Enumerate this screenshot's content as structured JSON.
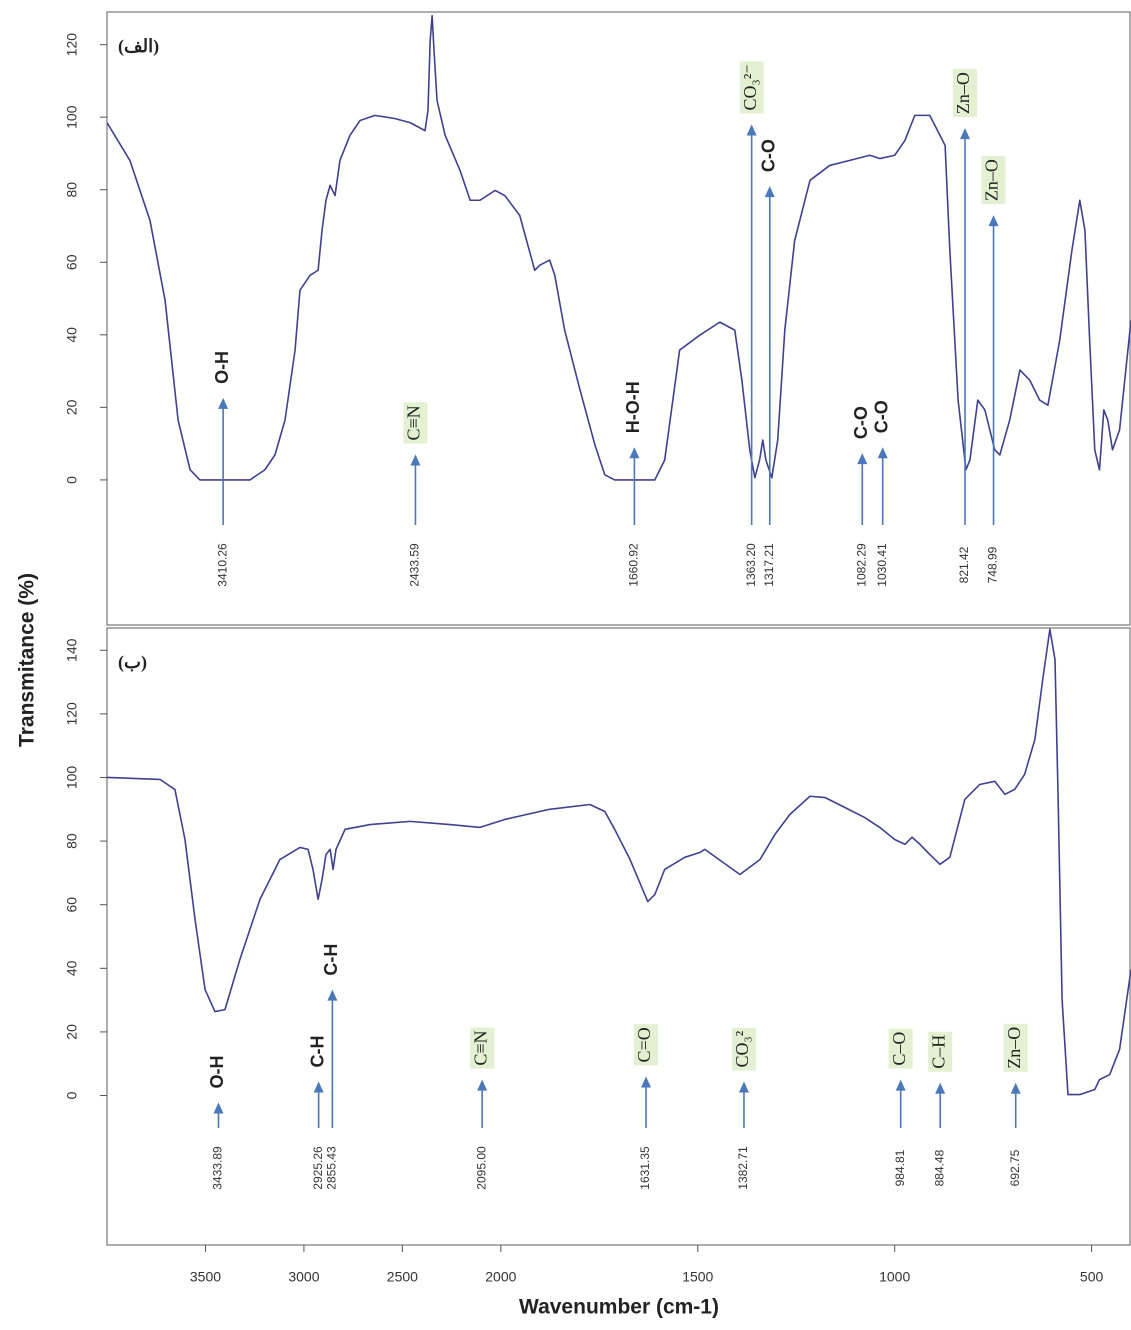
{
  "ylabel": "Transmitance (%)",
  "xlabel": "Wavenumber (cm-1)",
  "chart_data": [
    {
      "type": "line",
      "panel_label": "(الف)",
      "color": "#40408f",
      "arrow_color": "#4a78b8",
      "highlight_color": "#e3f1d2",
      "xlim": [
        4000,
        400
      ],
      "x_break": 2000,
      "x_break_zoom": 2,
      "ylim": [
        -40,
        129
      ],
      "yticks": [
        0,
        20,
        40,
        60,
        80,
        100,
        120
      ],
      "x": [
        4000,
        3883,
        3782,
        3705,
        3639,
        3578,
        3528,
        3274,
        3198,
        3147,
        3096,
        3045,
        3020,
        2969,
        2928,
        2908,
        2888,
        2867,
        2842,
        2817,
        2766,
        2715,
        2639,
        2537,
        2461,
        2385,
        2370,
        2359,
        2349,
        2339,
        2324,
        2283,
        2207,
        2156,
        2106,
        2029,
        1990,
        1952,
        1914,
        1901,
        1876,
        1863,
        1838,
        1799,
        1761,
        1736,
        1711,
        1609,
        1584,
        1546,
        1495,
        1444,
        1406,
        1388,
        1368,
        1355,
        1343,
        1335,
        1327,
        1312,
        1297,
        1279,
        1254,
        1215,
        1165,
        1114,
        1063,
        1038,
        1000,
        974,
        949,
        911,
        885,
        872,
        860,
        839,
        819,
        809,
        789,
        771,
        746,
        733,
        708,
        682,
        657,
        632,
        611,
        581,
        550,
        530,
        517,
        505,
        492,
        480,
        469,
        459,
        447,
        429,
        400
      ],
      "values": [
        98.5,
        88,
        71.6,
        49.5,
        16.5,
        2.8,
        0,
        0,
        2.8,
        6.9,
        16.5,
        35.8,
        52.3,
        56.4,
        57.8,
        68.8,
        77.1,
        81.2,
        78.4,
        88.1,
        95,
        99.1,
        100.5,
        99.6,
        98.5,
        96.3,
        101.8,
        121,
        128,
        118,
        104.6,
        95,
        85.3,
        77.1,
        77.1,
        79.8,
        78.4,
        72.9,
        57.8,
        59.2,
        60.6,
        56.4,
        41.3,
        24.8,
        9.6,
        1.4,
        0,
        0,
        5.5,
        35.8,
        39.9,
        43.5,
        41.3,
        27.5,
        8.3,
        0.6,
        5.5,
        11,
        5.5,
        0.6,
        11,
        41.3,
        66,
        82.6,
        86.7,
        88.1,
        89.5,
        88.6,
        89.5,
        93.6,
        100.5,
        100.5,
        95,
        92.2,
        63.3,
        22,
        2.8,
        5.5,
        22,
        19.3,
        8.3,
        6.9,
        16.5,
        30.3,
        27.5,
        22,
        20.6,
        38.5,
        63.3,
        77.1,
        68.8,
        38.5,
        8.3,
        2.8,
        19.3,
        16.5,
        8.3,
        13.8,
        44
      ],
      "annotations": [
        {
          "label": "O-H",
          "x": 3410.26,
          "y": 22.6,
          "highlight": false
        },
        {
          "label": "C≡N",
          "x": 2433.59,
          "y": 7,
          "highlight": true
        },
        {
          "label": "H-O-H",
          "x": 1660.92,
          "y": 9,
          "highlight": false
        },
        {
          "label": "CO₃²⁻",
          "x": {
            "value": 1363.2,
            "label": "1363.20"
          },
          "y": 98,
          "highlight": true
        },
        {
          "label": "C-O",
          "x": 1317.21,
          "y": 81,
          "highlight": false
        },
        {
          "label": "C-O",
          "x": 1082.29,
          "y": 7.4,
          "highlight": false
        },
        {
          "label": "C-O",
          "x": 1030.41,
          "y": 9,
          "highlight": false
        },
        {
          "label": "Zn–O",
          "x": 821.42,
          "y": 97,
          "highlight": true
        },
        {
          "label": "Zn–O",
          "x": 748.99,
          "y": 73,
          "highlight": true
        }
      ]
    },
    {
      "type": "line",
      "panel_label": "(ب)",
      "color": "#40408f",
      "arrow_color": "#4a78b8",
      "highlight_color": "#e3f1d2",
      "xlim": [
        4000,
        400
      ],
      "x_break": 2000,
      "x_break_zoom": 2,
      "xticks": [
        3500,
        3000,
        2500,
        2000,
        1500,
        1000,
        500
      ],
      "ylim": [
        -47,
        147
      ],
      "yticks": [
        0,
        20,
        40,
        60,
        80,
        100,
        120,
        140
      ],
      "x": [
        4000,
        3731,
        3655,
        3604,
        3553,
        3502,
        3452,
        3401,
        3325,
        3223,
        3122,
        3020,
        2979,
        2954,
        2928,
        2908,
        2888,
        2867,
        2852,
        2837,
        2791,
        2664,
        2461,
        2258,
        2106,
        1990,
        1876,
        1774,
        1736,
        1711,
        1672,
        1627,
        1609,
        1584,
        1533,
        1495,
        1482,
        1393,
        1342,
        1304,
        1266,
        1215,
        1177,
        1127,
        1076,
        1038,
        1000,
        974,
        956,
        936,
        911,
        885,
        860,
        822,
        784,
        746,
        720,
        695,
        670,
        644,
        624,
        606,
        593,
        585,
        575,
        560,
        530,
        492,
        480,
        454,
        429,
        400
      ],
      "values": [
        100,
        99.4,
        96.2,
        80.5,
        55.4,
        33.3,
        26.4,
        27,
        42.8,
        61.7,
        74.2,
        78,
        77.4,
        71.1,
        61.7,
        67.9,
        75.8,
        77.4,
        71.1,
        77.4,
        83.7,
        85.2,
        86.2,
        85.2,
        84.3,
        86.8,
        90,
        91.5,
        89.3,
        83.7,
        74.2,
        61,
        63.2,
        71.1,
        74.9,
        76.4,
        77.4,
        69.5,
        74.2,
        82.1,
        88.4,
        94.1,
        93.7,
        90.6,
        87.4,
        84.3,
        80.5,
        79,
        81.2,
        79,
        75.8,
        72.7,
        74.9,
        93.1,
        97.8,
        98.8,
        94.7,
        96.3,
        101,
        112,
        130.9,
        146.6,
        137.1,
        93.1,
        30.2,
        0.3,
        0.3,
        1.9,
        5,
        6.6,
        14.5,
        39.6
      ],
      "annotations": [
        {
          "label": "O-H",
          "x": 3433.89,
          "y": -2.2,
          "highlight": false
        },
        {
          "label": "C-H",
          "x": 2925.26,
          "y": 4.4,
          "highlight": false
        },
        {
          "label": "C-H",
          "x": 2855.43,
          "y": 33.3,
          "highlight": false
        },
        {
          "label": "C≡N",
          "x": {
            "value": 2095,
            "label": "2095.00"
          },
          "y": 5,
          "highlight": true
        },
        {
          "label": "C=O",
          "x": 1631.35,
          "y": 6,
          "highlight": true
        },
        {
          "label": "CO₃²",
          "x": 1382.71,
          "y": 4.4,
          "highlight": true
        },
        {
          "label": "C–O",
          "x": 984.81,
          "y": 5,
          "highlight": true
        },
        {
          "label": "C–H",
          "x": 884.48,
          "y": 4,
          "highlight": true
        },
        {
          "label": "Zn–O",
          "x": 692.75,
          "y": 4,
          "highlight": true
        }
      ]
    }
  ]
}
